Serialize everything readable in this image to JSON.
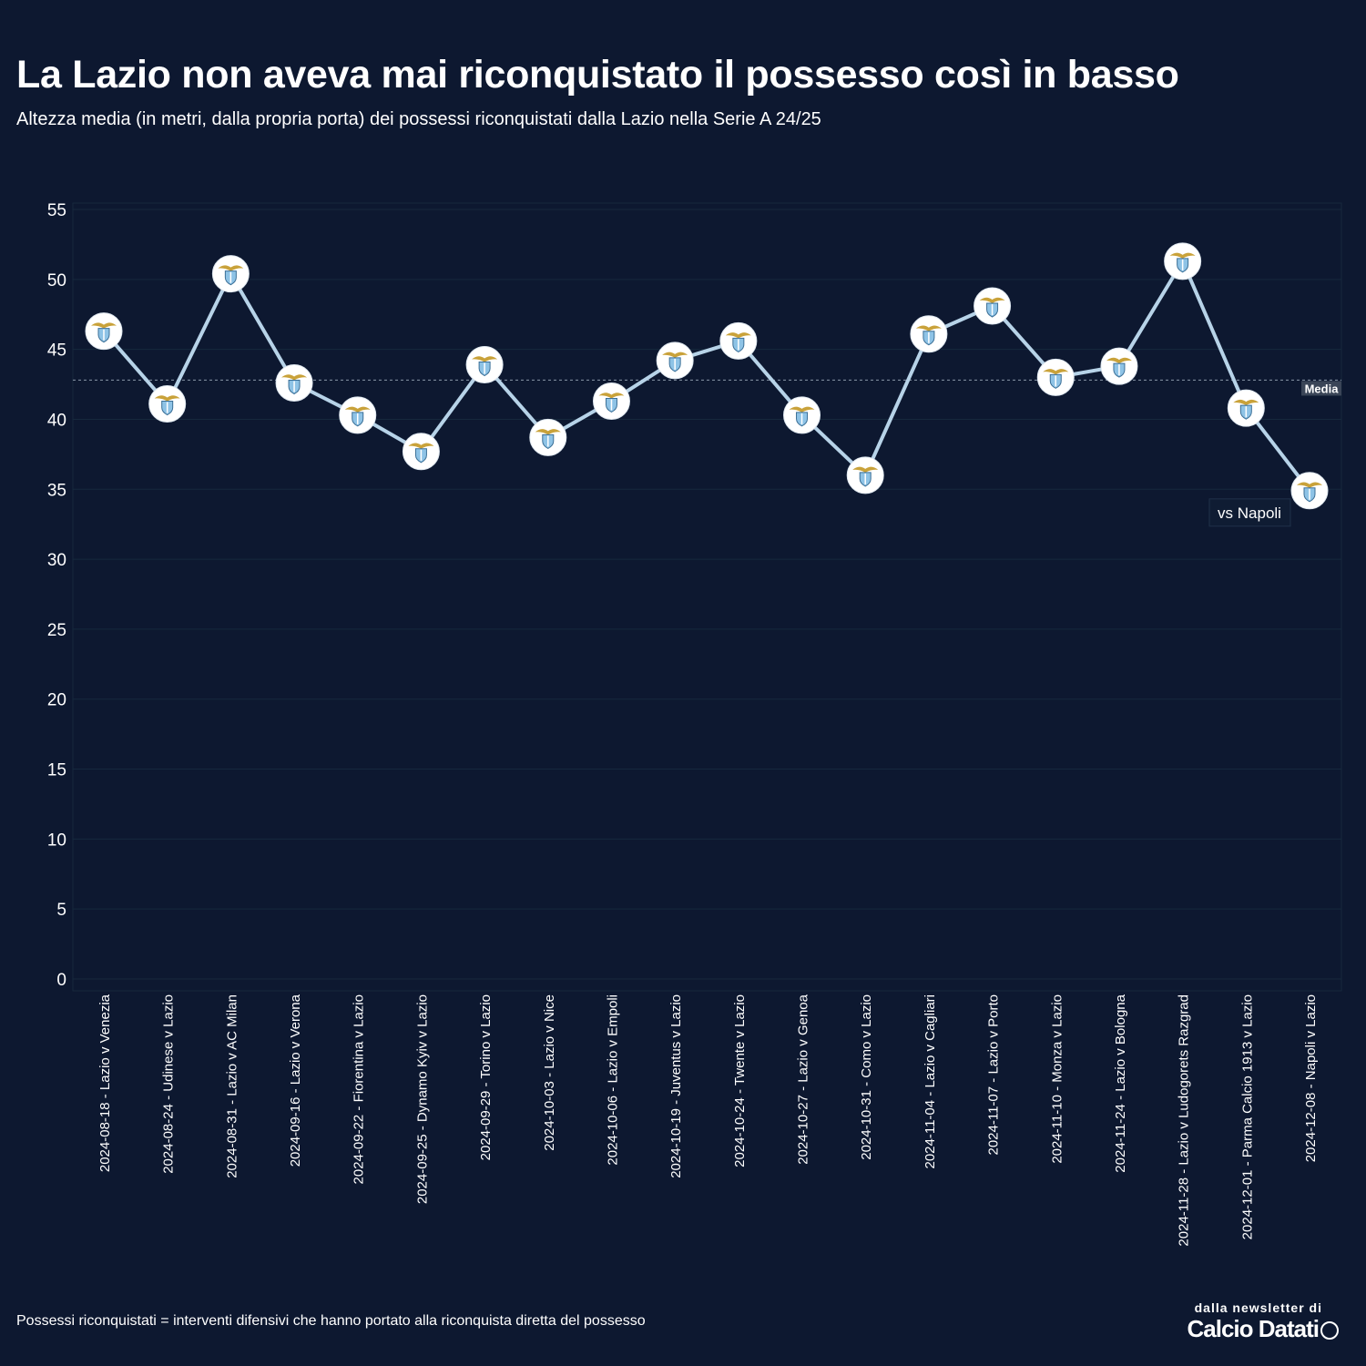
{
  "header": {
    "title": "La Lazio non aveva mai riconquistato il possesso così in basso",
    "subtitle": "Altezza media (in metri, dalla propria porta) dei possessi riconquistati dalla Lazio nella Serie A 24/25"
  },
  "footer": {
    "note": "Possessi riconquistati = interventi difensivi che hanno portato alla riconquista diretta del possesso",
    "brand_top": "dalla newsletter di",
    "brand_name": "Calcio Datati"
  },
  "colors": {
    "background": "#0d1830",
    "line": "#b7d3e8",
    "grid": "#16283d",
    "marker_fill": "#ffffff",
    "mean_line": "#8a97a8"
  },
  "chart_data": {
    "type": "line",
    "categories": [
      "2024-08-18 - Lazio v Venezia",
      "2024-08-24 - Udinese v Lazio",
      "2024-08-31 - Lazio v AC Milan",
      "2024-09-16 - Lazio v Verona",
      "2024-09-22 - Fiorentina v Lazio",
      "2024-09-25 - Dynamo Kyiv v Lazio",
      "2024-09-29 - Torino v Lazio",
      "2024-10-03 - Lazio v Nice",
      "2024-10-06 - Lazio v Empoli",
      "2024-10-19 - Juventus v Lazio",
      "2024-10-24 - Twente v Lazio",
      "2024-10-27 - Lazio v Genoa",
      "2024-10-31 - Como v Lazio",
      "2024-11-04 - Lazio v Cagliari",
      "2024-11-07 - Lazio v Porto",
      "2024-11-10 - Monza v Lazio",
      "2024-11-24 - Lazio v Bologna",
      "2024-11-28 - Lazio v Ludogorets Razgrad",
      "2024-12-01 - Parma Calcio 1913 v Lazio",
      "2024-12-08 - Napoli v Lazio"
    ],
    "values": [
      46.3,
      41.1,
      50.4,
      42.6,
      40.3,
      37.7,
      43.9,
      38.7,
      41.3,
      44.2,
      45.6,
      40.3,
      36.0,
      46.1,
      48.1,
      43.0,
      43.8,
      51.3,
      40.8,
      34.9
    ],
    "ylim": [
      0,
      55
    ],
    "yticks": [
      0,
      5,
      10,
      15,
      20,
      25,
      30,
      35,
      40,
      45,
      50,
      55
    ],
    "mean": 42.8,
    "mean_label": "Media",
    "annotation": {
      "text": "vs Napoli",
      "index": 19
    },
    "grid": true,
    "marker": "lazio-crest"
  }
}
